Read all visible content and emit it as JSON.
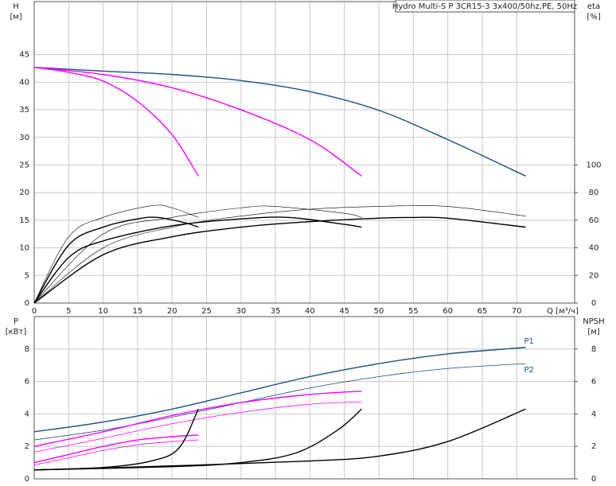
{
  "chart_data": [
    {
      "type": "line",
      "title": "Hydro Multi-S P 3CR15-3 3x400/50hz,PE, 50Hz",
      "y_label": "H",
      "y_unit": "[м]",
      "y2_label": "eta",
      "y2_unit": "[%]",
      "x_label": "Q [м³/ч]",
      "xlim": [
        0,
        78.4
      ],
      "xticks": [
        0,
        5,
        10,
        15,
        20,
        25,
        30,
        35,
        40,
        45,
        50,
        55,
        60,
        65,
        70
      ],
      "ylim": [
        0,
        54.6
      ],
      "yticks": [
        0,
        5,
        10,
        15,
        20,
        25,
        30,
        35,
        40,
        45
      ],
      "y2lim": [
        0,
        218.4
      ],
      "y2ticks": [
        0,
        20,
        40,
        60,
        80,
        100
      ],
      "grid": true,
      "series": [
        {
          "color": "#1f4e79",
          "width": 1.4,
          "x": [
            0,
            10,
            20,
            30,
            40,
            50,
            60,
            71.3
          ],
          "values": [
            42.7,
            42,
            41.4,
            40.3,
            38.3,
            34.9,
            29.6,
            23
          ]
        },
        {
          "color": "#ff00ff",
          "width": 1.4,
          "x": [
            0,
            10,
            20,
            30,
            40,
            47.5
          ],
          "values": [
            42.7,
            41.4,
            39,
            35,
            29.6,
            23
          ]
        },
        {
          "color": "#ff00ff",
          "width": 1.4,
          "x": [
            0,
            5,
            10,
            15,
            20,
            23.8
          ],
          "values": [
            42.7,
            41.8,
            40.2,
            36.5,
            30.5,
            23
          ]
        },
        {
          "color": "#000000",
          "width": 1.4,
          "axis": "y2",
          "x": [
            0,
            10,
            20,
            30,
            40,
            50,
            55,
            60,
            71.3
          ],
          "values": [
            0,
            35,
            48,
            55,
            59,
            61.5,
            62,
            61.5,
            55
          ]
        },
        {
          "color": "#000000",
          "width": 0.6,
          "axis": "y2",
          "x": [
            0,
            10,
            20,
            30,
            40,
            50,
            60,
            71.3
          ],
          "values": [
            0,
            40,
            55,
            63,
            68,
            70,
            70,
            63
          ]
        },
        {
          "color": "#000000",
          "width": 1.4,
          "axis": "y2",
          "x": [
            0,
            5,
            10,
            20,
            30,
            37,
            45,
            47.5
          ],
          "values": [
            0,
            33,
            45,
            56,
            61,
            62,
            57,
            55
          ]
        },
        {
          "color": "#000000",
          "width": 0.6,
          "axis": "y2",
          "x": [
            0,
            10,
            20,
            30,
            35,
            45,
            47.5
          ],
          "values": [
            0,
            50,
            62,
            69,
            70,
            65,
            62
          ]
        },
        {
          "color": "#000000",
          "width": 1.4,
          "axis": "y2",
          "x": [
            0,
            5,
            10,
            15,
            18,
            22,
            23.8
          ],
          "values": [
            0,
            42,
            55,
            61,
            62,
            58,
            55
          ]
        },
        {
          "color": "#000000",
          "width": 0.6,
          "axis": "y2",
          "x": [
            0,
            5,
            10,
            17,
            20,
            23.8
          ],
          "values": [
            0,
            48,
            62,
            70.5,
            69,
            62
          ]
        }
      ]
    },
    {
      "type": "line",
      "y_label": "P",
      "y_unit": "[кВт]",
      "y2_label": "NPSH",
      "y2_unit": "[м]",
      "xlim": [
        0,
        78.4
      ],
      "ylim": [
        0,
        10
      ],
      "yticks": [
        0,
        2,
        4,
        6,
        8
      ],
      "y2lim": [
        0,
        10
      ],
      "y2ticks": [
        0,
        2,
        4,
        6,
        8
      ],
      "grid": true,
      "series": [
        {
          "name": "P1",
          "color": "#1f4e79",
          "width": 1.4,
          "x": [
            0,
            10,
            20,
            30,
            40,
            50,
            60,
            71.3
          ],
          "values": [
            2.9,
            3.5,
            4.3,
            5.3,
            6.3,
            7.1,
            7.7,
            8.1
          ]
        },
        {
          "name": "P2",
          "color": "#1f4e79",
          "width": 0.8,
          "x": [
            0,
            10,
            20,
            30,
            40,
            50,
            60,
            71.3
          ],
          "values": [
            2.4,
            3,
            3.8,
            4.7,
            5.6,
            6.3,
            6.8,
            7.1
          ]
        },
        {
          "color": "#ff00ff",
          "width": 1.4,
          "x": [
            0,
            10,
            20,
            30,
            40,
            47.5
          ],
          "values": [
            2,
            2.9,
            3.9,
            4.7,
            5.2,
            5.4
          ]
        },
        {
          "color": "#ff00ff",
          "width": 0.8,
          "x": [
            0,
            10,
            20,
            30,
            40,
            47.5
          ],
          "values": [
            1.65,
            2.5,
            3.4,
            4.1,
            4.6,
            4.75
          ]
        },
        {
          "color": "#ff00ff",
          "width": 1.4,
          "x": [
            0,
            5,
            10,
            15,
            20,
            23.8
          ],
          "values": [
            1,
            1.5,
            2,
            2.4,
            2.6,
            2.7
          ]
        },
        {
          "color": "#ff00ff",
          "width": 0.8,
          "x": [
            0,
            5,
            10,
            15,
            20,
            23.8
          ],
          "values": [
            0.85,
            1.3,
            1.75,
            2.1,
            2.3,
            2.4
          ]
        },
        {
          "color": "#000000",
          "width": 1.4,
          "axis": "y2",
          "x": [
            0,
            20,
            40,
            50,
            60,
            71.3
          ],
          "values": [
            0.55,
            0.8,
            1.1,
            1.4,
            2.3,
            4.3
          ]
        },
        {
          "color": "#000000",
          "width": 1.4,
          "axis": "y2",
          "x": [
            0,
            20,
            30,
            38,
            44,
            47.5
          ],
          "values": [
            0.55,
            0.75,
            1,
            1.6,
            3,
            4.3
          ]
        },
        {
          "color": "#000000",
          "width": 1.4,
          "axis": "y2",
          "x": [
            0,
            10,
            17,
            21,
            23.8
          ],
          "values": [
            0.55,
            0.7,
            1.1,
            1.9,
            4.3
          ]
        }
      ]
    }
  ]
}
